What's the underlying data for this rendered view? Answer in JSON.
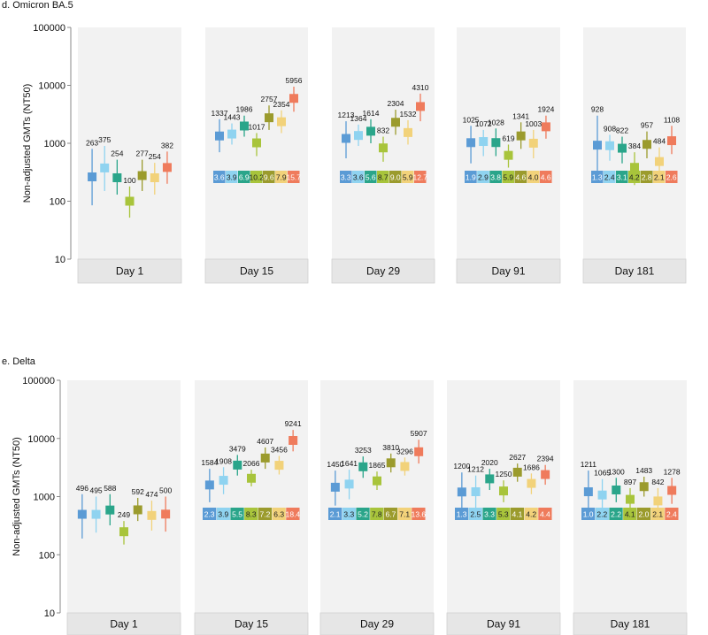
{
  "chart_data": {
    "type": "scatter",
    "colors": [
      "#5b9bd5",
      "#8fd3f0",
      "#2aa58a",
      "#a8c43b",
      "#9b9b2d",
      "#f2d27a",
      "#ef7b5c"
    ],
    "panels": [
      {
        "title": "d. Omicron BA.5",
        "ylabel": "Non-adjusted GMTs (NT50)",
        "yscale": "log",
        "ylim": [
          10,
          100000
        ],
        "yticks": [
          "100000",
          "10000",
          "1000",
          "100",
          "10"
        ],
        "days": [
          {
            "label": "Day 1",
            "values": [
              263,
              375,
              254,
              100,
              277,
              254,
              382
            ],
            "value_labels": [
              "263",
              "375",
              "254",
              "100",
              "277",
              "254",
              "382"
            ],
            "lower": [
              85,
              150,
              130,
              52,
              150,
              130,
              200
            ],
            "upper": [
              800,
              900,
              520,
              180,
              520,
              460,
              720
            ],
            "ratios": []
          },
          {
            "label": "Day 15",
            "values": [
              1337,
              1443,
              1986,
              1017,
              2757,
              2354,
              5956
            ],
            "value_labels": [
              "1337",
              "1443",
              "1986",
              "1017",
              "2757",
              "2354",
              "5956"
            ],
            "lower": [
              700,
              950,
              1300,
              600,
              1700,
              1500,
              3500
            ],
            "upper": [
              2600,
              2200,
              3000,
              1500,
              4500,
              3700,
              9500
            ],
            "ratios": [
              "3.6",
              "3.9",
              "6.9",
              "10.2",
              "9.6",
              "7.9",
              "15.7"
            ]
          },
          {
            "label": "Day 29",
            "values": [
              1213,
              1364,
              1614,
              832,
              2304,
              1532,
              4310
            ],
            "value_labels": [
              "1213",
              "1364",
              "1614",
              "832",
              "2304",
              "1532",
              "4310"
            ],
            "lower": [
              550,
              900,
              1000,
              480,
              1400,
              950,
              2400
            ],
            "upper": [
              2400,
              2100,
              2600,
              1300,
              3800,
              2500,
              7200
            ],
            "ratios": [
              "3.3",
              "3.6",
              "5.6",
              "8.7",
              "9.0",
              "5.9",
              "12.7"
            ]
          },
          {
            "label": "Day 91",
            "values": [
              1025,
              1072,
              1028,
              619,
              1341,
              1003,
              1924
            ],
            "value_labels": [
              "1025",
              "1072",
              "1028",
              "619",
              "1341",
              "1003",
              "1924"
            ],
            "lower": [
              450,
              600,
              600,
              380,
              800,
              550,
              1200
            ],
            "upper": [
              2000,
              1700,
              1800,
              950,
              2300,
              1700,
              3000
            ],
            "ratios": [
              "1.9",
              "2.9",
              "3.8",
              "5.9",
              "4.6",
              "4.0",
              "4.6"
            ]
          },
          {
            "label": "Day 181",
            "values": [
              928,
              908,
              822,
              384,
              957,
              484,
              1108
            ],
            "value_labels": [
              "928",
              "908",
              "822",
              "384",
              "957",
              "484",
              "1108"
            ],
            "lower": [
              280,
              500,
              450,
              190,
              550,
              260,
              650
            ],
            "upper": [
              3000,
              1400,
              1300,
              700,
              1600,
              850,
              2000
            ],
            "ratios": [
              "1.3",
              "2.4",
              "3.1",
              "4.2",
              "2.8",
              "2.1",
              "2.6"
            ]
          }
        ]
      },
      {
        "title": "e. Delta",
        "ylabel": "Non-adjusted GMTs (NT50)",
        "yscale": "log",
        "ylim": [
          10,
          100000
        ],
        "yticks": [
          "100000",
          "10000",
          "1000",
          "100",
          "10"
        ],
        "days": [
          {
            "label": "Day 1",
            "values": [
              496,
              495,
              588,
              249,
              592,
              474,
              500
            ],
            "value_labels": [
              "496",
              "495",
              "588",
              "249",
              "592",
              "474",
              "500"
            ],
            "lower": [
              190,
              240,
              320,
              150,
              380,
              260,
              250
            ],
            "upper": [
              1100,
              1000,
              1100,
              380,
              950,
              850,
              1000
            ],
            "ratios": []
          },
          {
            "label": "Day 15",
            "values": [
              1584,
              1908,
              3479,
              2066,
              4607,
              3456,
              9241
            ],
            "value_labels": [
              "1584",
              "1908",
              "3479",
              "2066",
              "4607",
              "3456",
              "9241"
            ],
            "lower": [
              800,
              1100,
              2300,
              1500,
              3000,
              2400,
              6000
            ],
            "upper": [
              3000,
              3200,
              5200,
              2900,
              7000,
              5000,
              14000
            ],
            "ratios": [
              "2.3",
              "3.9",
              "5.5",
              "8.3",
              "7.2",
              "6.3",
              "18.4"
            ]
          },
          {
            "label": "Day 29",
            "values": [
              1450,
              1641,
              3253,
              1865,
              3810,
              3296,
              5907
            ],
            "value_labels": [
              "1450",
              "1641",
              "3253",
              "1865",
              "3810",
              "3296",
              "5907"
            ],
            "lower": [
              700,
              900,
              2100,
              1300,
              2600,
              2300,
              3700
            ],
            "upper": [
              2800,
              2900,
              4900,
              2700,
              5500,
              4700,
              9500
            ],
            "ratios": [
              "2.1",
              "3.3",
              "5.2",
              "7.8",
              "6.7",
              "7.1",
              "13.6"
            ]
          },
          {
            "label": "Day 91",
            "values": [
              1200,
              1212,
              2020,
              1250,
              2627,
              1686,
              2394
            ],
            "value_labels": [
              "1200",
              "1212",
              "2020",
              "1250",
              "2627",
              "1686",
              "2394"
            ],
            "lower": [
              500,
              600,
              1300,
              800,
              1800,
              1100,
              1600
            ],
            "upper": [
              2600,
              2300,
              3000,
              1900,
              3700,
              2500,
              3500
            ],
            "ratios": [
              "1.3",
              "2.5",
              "3.3",
              "5.3",
              "4.1",
              "4.2",
              "4.4"
            ]
          },
          {
            "label": "Day 181",
            "values": [
              1211,
              1065,
              1300,
              897,
              1483,
              842,
              1278
            ],
            "value_labels": [
              "1211",
              "1065",
              "1300",
              "897",
              "1483",
              "842",
              "1278"
            ],
            "lower": [
              500,
              550,
              800,
              550,
              1000,
              500,
              750
            ],
            "upper": [
              2800,
              2000,
              2100,
              1400,
              2200,
              1400,
              2100
            ],
            "ratios": [
              "1.0",
              "2.2",
              "2.2",
              "4.1",
              "2.0",
              "2.1",
              "2.4"
            ]
          }
        ]
      }
    ]
  }
}
